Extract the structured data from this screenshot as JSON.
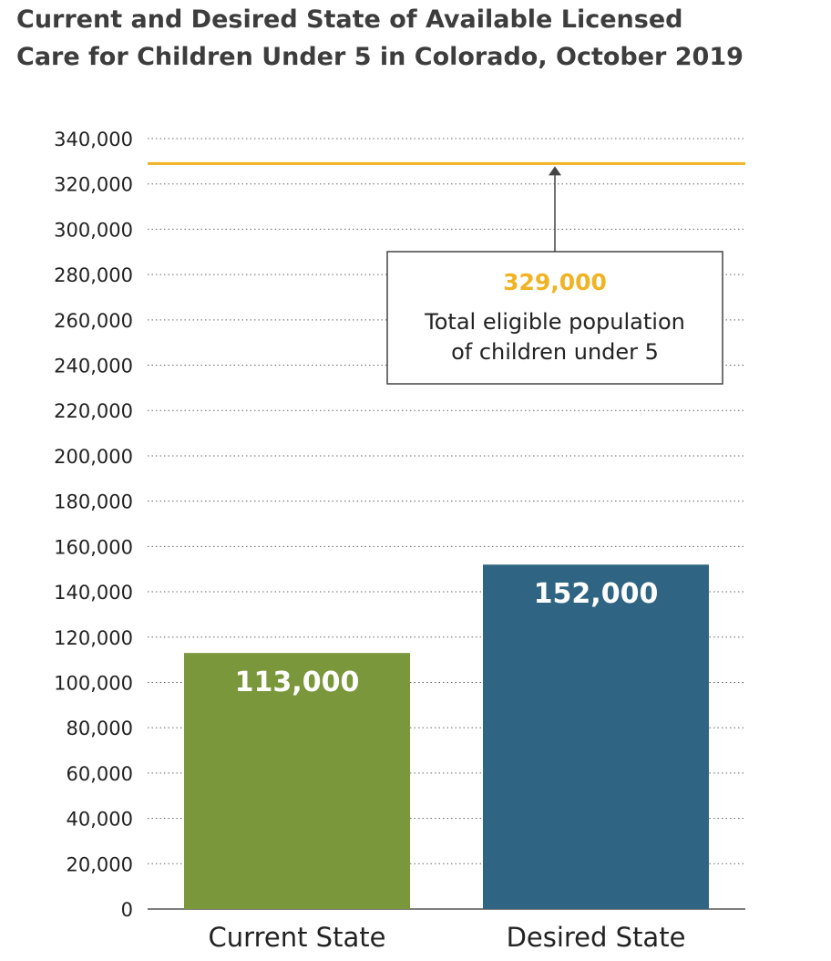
{
  "chart_data": {
    "type": "bar",
    "title_lines": [
      "Current and Desired State of Available Licensed",
      "Care for Children Under 5 in Colorado, October 2019"
    ],
    "categories": [
      "Current State",
      "Desired State"
    ],
    "values": [
      113000,
      152000
    ],
    "value_labels": [
      "113,000",
      "152,000"
    ],
    "bar_colors": [
      "#7a973c",
      "#2f6582"
    ],
    "ylim": [
      0,
      340000
    ],
    "ytick_step": 20000,
    "grid": true,
    "xlabel": "",
    "ylabel": "",
    "reference_line": {
      "value": 329000,
      "color": "#f0b323",
      "label_value": "329,000",
      "label_lines": [
        "Total eligible population",
        "of children under 5"
      ]
    }
  }
}
